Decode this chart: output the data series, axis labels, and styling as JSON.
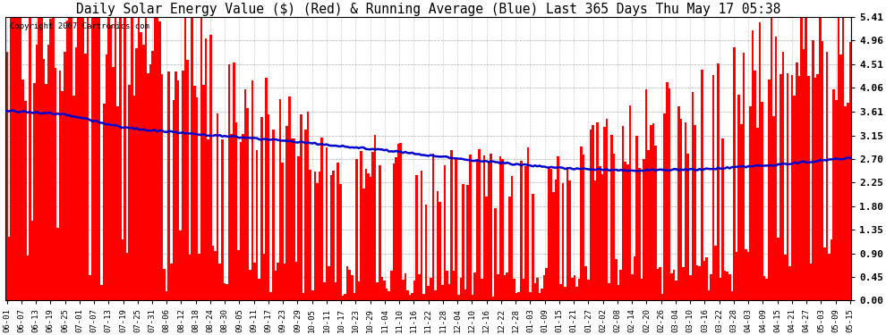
{
  "title": "Daily Solar Energy Value ($) (Red) & Running Average (Blue) Last 365 Days Thu May 17 05:38",
  "copyright": "Copyright 2007 Cartronics.com",
  "yticks": [
    0.0,
    0.45,
    0.9,
    1.35,
    1.8,
    2.25,
    2.7,
    3.15,
    3.61,
    4.06,
    4.51,
    4.96,
    5.41
  ],
  "ylim": [
    0.0,
    5.41
  ],
  "bar_color": "#ff0000",
  "avg_color": "#0000cc",
  "background_color": "#ffffff",
  "grid_color": "#999999",
  "title_fontsize": 10.5,
  "xlabel_fontsize": 6.5,
  "ylabel_fontsize": 8,
  "x_labels": [
    "06-01",
    "06-07",
    "06-13",
    "06-19",
    "06-25",
    "07-01",
    "07-07",
    "07-13",
    "07-19",
    "07-25",
    "07-31",
    "08-06",
    "08-12",
    "08-18",
    "08-24",
    "08-30",
    "09-05",
    "09-11",
    "09-17",
    "09-23",
    "09-29",
    "10-05",
    "10-11",
    "10-17",
    "10-23",
    "10-29",
    "11-04",
    "11-10",
    "11-16",
    "11-22",
    "11-28",
    "12-04",
    "12-10",
    "12-16",
    "12-22",
    "12-28",
    "01-03",
    "01-09",
    "01-15",
    "01-21",
    "01-27",
    "02-02",
    "02-08",
    "02-14",
    "02-20",
    "02-26",
    "03-04",
    "03-10",
    "03-16",
    "03-22",
    "03-28",
    "04-03",
    "04-09",
    "04-15",
    "04-21",
    "04-27",
    "05-03",
    "05-09",
    "05-15"
  ],
  "n_days": 365,
  "avg_keypoints_x": [
    0,
    25,
    50,
    80,
    120,
    160,
    200,
    240,
    270,
    300,
    330,
    364
  ],
  "avg_keypoints_y": [
    3.62,
    3.55,
    3.3,
    3.18,
    3.05,
    2.88,
    2.68,
    2.52,
    2.48,
    2.5,
    2.58,
    2.72
  ]
}
